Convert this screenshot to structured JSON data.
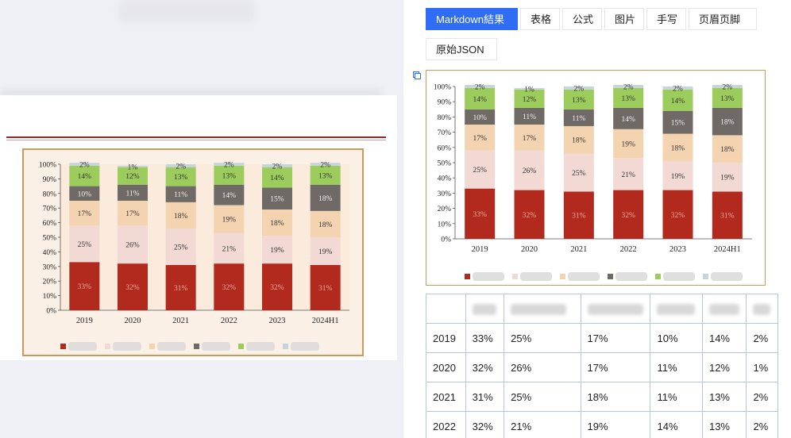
{
  "tabs": [
    {
      "label": "Markdown結果",
      "active": true
    },
    {
      "label": "表格",
      "active": false
    },
    {
      "label": "公式",
      "active": false
    },
    {
      "label": "图片",
      "active": false
    },
    {
      "label": "手写",
      "active": false
    },
    {
      "label": "页眉页脚",
      "active": false
    },
    {
      "label": "原始JSON",
      "active": false
    }
  ],
  "chart_data": [
    {
      "type": "bar",
      "stacked": true,
      "categories": [
        "2019",
        "2020",
        "2021",
        "2022",
        "2023",
        "2024H1"
      ],
      "series": [
        {
          "values": [
            33,
            32,
            31,
            32,
            32,
            31
          ],
          "color": "#b22a1e"
        },
        {
          "values": [
            25,
            26,
            25,
            21,
            19,
            19
          ],
          "color": "#f2d9d3"
        },
        {
          "values": [
            17,
            17,
            18,
            19,
            18,
            18
          ],
          "color": "#f4d3b1"
        },
        {
          "values": [
            10,
            11,
            11,
            14,
            15,
            18
          ],
          "color": "#6f6a66"
        },
        {
          "values": [
            14,
            12,
            13,
            13,
            14,
            13
          ],
          "color": "#9ccc5c"
        },
        {
          "values": [
            2,
            1,
            2,
            2,
            2,
            2
          ],
          "color": "#c8d4dc"
        }
      ],
      "ylim": [
        0,
        100
      ],
      "yticks": [
        "0%",
        "10%",
        "20%",
        "30%",
        "40%",
        "50%",
        "60%",
        "70%",
        "80%",
        "90%",
        "100%"
      ],
      "legend": "bottom"
    }
  ],
  "table": {
    "rows": [
      [
        "2019",
        "33%",
        "25%",
        "17%",
        "10%",
        "14%",
        "2%"
      ],
      [
        "2020",
        "32%",
        "26%",
        "17%",
        "11%",
        "12%",
        "1%"
      ],
      [
        "2021",
        "31%",
        "25%",
        "18%",
        "11%",
        "13%",
        "2%"
      ],
      [
        "2022",
        "32%",
        "21%",
        "19%",
        "14%",
        "13%",
        "2%"
      ]
    ]
  }
}
